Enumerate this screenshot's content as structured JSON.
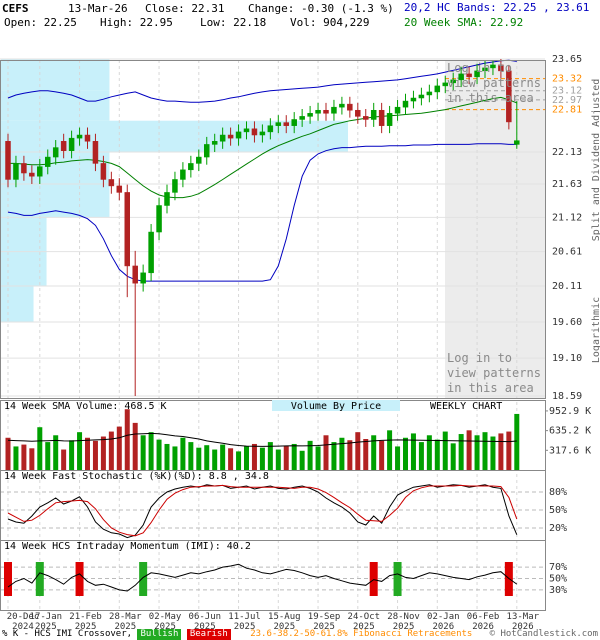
{
  "header": {
    "symbol": "CEFS",
    "date": "13-Mar-26",
    "close": "Close: 22.31",
    "change": "Change: -0.30 (-1.3 %)",
    "bands": "20,2 HC Bands: 22.25 , 23.61",
    "open": "Open: 22.25",
    "high": "High: 22.95",
    "low": "Low: 22.18",
    "volume": "Vol: 904,229",
    "sma": "20 Week SMA: 22.92"
  },
  "chart_data": [
    {
      "type": "candlestick",
      "log_scale": true,
      "grid": true,
      "side_labels": [
        "Split and Dividend Adjusted",
        "Logarithmic"
      ],
      "notice": "Log in to view patterns in this area",
      "categories": [
        "20-Dec 2024",
        null,
        null,
        null,
        "17-Jan 2025",
        null,
        null,
        null,
        null,
        "21-Feb 2025",
        null,
        null,
        null,
        null,
        "28-Mar 2025",
        null,
        null,
        null,
        null,
        "02-May 2025",
        null,
        null,
        null,
        null,
        "06-Jun 2025",
        null,
        null,
        null,
        null,
        "11-Jul 2025",
        null,
        null,
        null,
        null,
        "15-Aug 2025",
        null,
        null,
        null,
        null,
        "19-Sep 2025",
        null,
        null,
        null,
        null,
        "24-Oct 2025",
        null,
        null,
        null,
        null,
        "28-Nov 2025",
        null,
        null,
        null,
        null,
        "02-Jan 2026",
        null,
        null,
        null,
        null,
        "06-Feb 2026",
        null,
        null,
        null,
        null,
        "13-Mar 2026"
      ],
      "open": [
        22.3,
        21.7,
        21.95,
        21.8,
        21.75,
        21.9,
        22.05,
        22.3,
        22.15,
        22.35,
        22.4,
        22.3,
        21.95,
        21.7,
        21.6,
        21.5,
        20.4,
        20.15,
        20.3,
        20.9,
        21.3,
        21.5,
        21.7,
        21.85,
        21.95,
        22.05,
        22.25,
        22.3,
        22.4,
        22.35,
        22.45,
        22.5,
        22.4,
        22.45,
        22.55,
        22.6,
        22.55,
        22.65,
        22.7,
        22.75,
        22.8,
        22.75,
        22.85,
        22.9,
        22.8,
        22.7,
        22.65,
        22.8,
        22.55,
        22.75,
        22.85,
        22.95,
        23.0,
        23.05,
        23.1,
        23.2,
        23.25,
        23.3,
        23.4,
        23.35,
        23.45,
        23.5,
        23.55,
        23.45,
        22.25
      ],
      "high": [
        22.42,
        22.07,
        22.07,
        21.92,
        22.02,
        22.17,
        22.32,
        22.42,
        22.47,
        22.52,
        22.52,
        22.42,
        22.07,
        21.82,
        21.72,
        21.62,
        20.62,
        20.42,
        21.02,
        21.42,
        21.62,
        21.82,
        21.97,
        22.07,
        22.17,
        22.37,
        22.42,
        22.52,
        22.52,
        22.57,
        22.62,
        22.62,
        22.57,
        22.67,
        22.72,
        22.72,
        22.77,
        22.82,
        22.87,
        22.92,
        22.92,
        22.97,
        23.02,
        23.02,
        22.92,
        22.82,
        22.92,
        22.92,
        22.87,
        22.97,
        23.07,
        23.12,
        23.17,
        23.22,
        23.32,
        23.37,
        23.42,
        23.52,
        23.52,
        23.57,
        23.62,
        23.63,
        23.65,
        23.55,
        22.95
      ],
      "low": [
        21.58,
        21.58,
        21.68,
        21.63,
        21.63,
        21.78,
        21.93,
        22.03,
        22.03,
        22.23,
        22.18,
        21.83,
        21.58,
        21.48,
        21.38,
        19.95,
        18.59,
        20.03,
        20.18,
        20.78,
        21.18,
        21.38,
        21.58,
        21.73,
        21.83,
        21.93,
        22.13,
        22.18,
        22.23,
        22.23,
        22.33,
        22.28,
        22.28,
        22.33,
        22.43,
        22.43,
        22.43,
        22.53,
        22.58,
        22.63,
        22.63,
        22.63,
        22.73,
        22.68,
        22.58,
        22.53,
        22.53,
        22.43,
        22.43,
        22.63,
        22.73,
        22.83,
        22.88,
        22.93,
        22.98,
        23.08,
        23.13,
        23.18,
        23.23,
        23.23,
        23.33,
        23.38,
        23.33,
        22.49,
        22.18
      ],
      "close": [
        21.7,
        21.95,
        21.8,
        21.75,
        21.9,
        22.05,
        22.2,
        22.15,
        22.35,
        22.4,
        22.3,
        21.95,
        21.7,
        21.6,
        21.5,
        20.4,
        20.15,
        20.3,
        20.9,
        21.3,
        21.5,
        21.7,
        21.85,
        21.95,
        22.05,
        22.25,
        22.3,
        22.4,
        22.35,
        22.45,
        22.5,
        22.4,
        22.45,
        22.55,
        22.6,
        22.55,
        22.65,
        22.7,
        22.75,
        22.8,
        22.75,
        22.85,
        22.9,
        22.8,
        22.7,
        22.65,
        22.8,
        22.55,
        22.75,
        22.85,
        22.95,
        23.0,
        23.05,
        23.1,
        23.2,
        23.25,
        23.3,
        23.4,
        23.35,
        23.45,
        23.5,
        23.55,
        23.45,
        22.61,
        22.31
      ],
      "up_color": "#00a000",
      "down_color": "#b22222",
      "overlays": [
        {
          "color": "#008000",
          "values": [
            21.95,
            21.95,
            21.94,
            21.93,
            21.93,
            21.94,
            21.96,
            21.97,
            21.99,
            22.0,
            22.01,
            22.0,
            21.98,
            21.95,
            21.9,
            21.8,
            21.7,
            21.6,
            21.52,
            21.46,
            21.43,
            21.42,
            21.42,
            21.44,
            21.48,
            21.55,
            21.62,
            21.7,
            21.78,
            21.86,
            21.94,
            22.02,
            22.1,
            22.17,
            22.23,
            22.28,
            22.33,
            22.38,
            22.42,
            22.47,
            22.52,
            22.57,
            22.6,
            22.63,
            22.65,
            22.67,
            22.69,
            22.7,
            22.71,
            22.72,
            22.73,
            22.74,
            22.75,
            22.77,
            22.79,
            22.81,
            22.84,
            22.87,
            22.9,
            22.93,
            22.96,
            22.99,
            23.01,
            22.97,
            22.92
          ]
        },
        {
          "color": "#0000c0",
          "values": [
            23.0,
            23.05,
            23.08,
            23.1,
            23.12,
            23.12,
            23.1,
            23.08,
            23.05,
            23.0,
            22.95,
            22.95,
            22.98,
            23.02,
            23.05,
            23.08,
            23.1,
            23.05,
            23.0,
            22.97,
            22.95,
            22.95,
            22.94,
            22.93,
            22.93,
            22.94,
            22.95,
            22.97,
            23.0,
            23.02,
            23.05,
            23.08,
            23.1,
            23.12,
            23.13,
            23.14,
            23.15,
            23.16,
            23.17,
            23.18,
            23.2,
            23.22,
            23.23,
            23.24,
            23.25,
            23.26,
            23.27,
            23.28,
            23.29,
            23.3,
            23.32,
            23.34,
            23.36,
            23.38,
            23.4,
            23.43,
            23.46,
            23.49,
            23.52,
            23.55,
            23.58,
            23.6,
            23.62,
            23.63,
            23.61
          ]
        },
        {
          "color": "#0000c0",
          "values": [
            21.2,
            21.18,
            21.15,
            21.15,
            21.18,
            21.2,
            21.22,
            21.2,
            21.18,
            21.15,
            21.1,
            21.0,
            20.8,
            20.55,
            20.35,
            20.25,
            20.2,
            20.18,
            20.18,
            20.18,
            20.18,
            20.18,
            20.18,
            20.18,
            20.18,
            20.18,
            20.18,
            20.18,
            20.18,
            20.18,
            20.18,
            20.18,
            20.18,
            20.2,
            20.4,
            20.8,
            21.3,
            21.75,
            22.0,
            22.1,
            22.15,
            22.18,
            22.2,
            22.2,
            22.21,
            22.22,
            22.22,
            22.22,
            22.23,
            22.23,
            22.23,
            22.24,
            22.24,
            22.24,
            22.25,
            22.25,
            22.25,
            22.25,
            22.25,
            22.26,
            22.26,
            22.26,
            22.26,
            22.25,
            22.25
          ]
        }
      ],
      "vbp_bins": [
        19.6,
        20.11,
        20.61,
        21.12,
        21.63,
        22.13,
        22.63,
        23.13,
        23.65
      ],
      "vbp_values": [
        30,
        42,
        42,
        100,
        100,
        320,
        100,
        100
      ],
      "vbp_color": "#c8f0fa",
      "fib_levels": [
        {
          "value": 23.32,
          "color": "#ff8c00"
        },
        {
          "value": 23.12,
          "color": "#a0a0a0"
        },
        {
          "value": 22.97,
          "color": "#a0a0a0"
        },
        {
          "value": 22.81,
          "color": "#ff8c00"
        }
      ],
      "ylim": [
        18.59,
        23.65
      ],
      "yticks": [
        23.65,
        22.13,
        21.63,
        21.12,
        20.61,
        20.11,
        {
          "value": 19.6,
          "label": "19.60"
        },
        {
          "value": 19.1,
          "label": "19.10"
        },
        18.59
      ]
    },
    {
      "type": "bar",
      "title": "14 Week SMA Volume: 468.5 K",
      "subtitle": "Volume By Price",
      "annotation": "WEEKLY CHART",
      "values": [
        520000,
        380000,
        410000,
        350000,
        690000,
        450000,
        560000,
        330000,
        480000,
        610000,
        520000,
        470000,
        540000,
        620000,
        700000,
        980000,
        760000,
        560000,
        610000,
        490000,
        420000,
        380000,
        520000,
        450000,
        360000,
        400000,
        330000,
        410000,
        350000,
        300000,
        380000,
        420000,
        360000,
        450000,
        330000,
        390000,
        420000,
        310000,
        470000,
        380000,
        560000,
        450000,
        520000,
        480000,
        610000,
        500000,
        560000,
        470000,
        640000,
        380000,
        520000,
        590000,
        450000,
        560000,
        490000,
        620000,
        430000,
        580000,
        640000,
        560000,
        610000,
        540000,
        590000,
        620000,
        904229
      ],
      "sma": [
        480000,
        475000,
        470000,
        465000,
        470000,
        472000,
        478000,
        470000,
        468000,
        475000,
        480000,
        485000,
        490000,
        500000,
        520000,
        560000,
        580000,
        585000,
        590000,
        585000,
        570000,
        550000,
        540000,
        520000,
        500000,
        470000,
        450000,
        430000,
        410000,
        395000,
        385000,
        382000,
        380000,
        382000,
        385000,
        388000,
        390000,
        388000,
        392000,
        395000,
        405000,
        415000,
        425000,
        435000,
        450000,
        460000,
        470000,
        478000,
        482000,
        485000,
        484000,
        482000,
        480000,
        478000,
        476000,
        474000,
        472000,
        470000,
        468000,
        466000,
        464000,
        462000,
        460000,
        458000,
        468500
      ],
      "sma_color": "#000000",
      "ylim": [
        0,
        1000000
      ],
      "yticks": [
        {
          "value": 952900,
          "label": "952.9 K"
        },
        {
          "value": 635200,
          "label": "635.2 K"
        },
        {
          "value": 317600,
          "label": "317.6 K"
        }
      ]
    },
    {
      "type": "line",
      "title": "14 Week Fast Stochastic (%K)(%D): 8.8 , 34.8",
      "series": [
        {
          "color": "#000000",
          "values": [
            35,
            30,
            28,
            40,
            55,
            62,
            70,
            60,
            65,
            72,
            55,
            30,
            18,
            12,
            10,
            4,
            8,
            25,
            55,
            70,
            80,
            85,
            88,
            90,
            88,
            92,
            90,
            91,
            86,
            88,
            90,
            85,
            88,
            90,
            86,
            85,
            88,
            90,
            86,
            80,
            70,
            62,
            55,
            45,
            30,
            25,
            40,
            28,
            55,
            75,
            82,
            88,
            90,
            92,
            88,
            90,
            92,
            91,
            88,
            90,
            92,
            88,
            86,
            40,
            8.8
          ]
        },
        {
          "color": "#cc0000",
          "values": [
            45,
            38,
            31,
            33,
            41,
            52,
            62,
            64,
            65,
            66,
            64,
            52,
            34,
            20,
            13,
            9,
            7,
            12,
            29,
            50,
            68,
            78,
            84,
            88,
            89,
            90,
            90,
            91,
            89,
            88,
            88,
            88,
            88,
            88,
            88,
            87,
            86,
            88,
            88,
            85,
            79,
            71,
            62,
            54,
            43,
            33,
            32,
            31,
            41,
            53,
            71,
            82,
            87,
            90,
            90,
            90,
            90,
            91,
            90,
            90,
            90,
            90,
            89,
            71,
            34.8
          ]
        }
      ],
      "ylim": [
        0,
        100
      ],
      "yticks": [
        {
          "value": 80,
          "label": "80%"
        },
        {
          "value": 50,
          "label": "50%"
        },
        {
          "value": 20,
          "label": "20%"
        }
      ]
    },
    {
      "type": "line",
      "title": "14 Week HCS Intraday Momentum (IMI): 40.2",
      "values": [
        35,
        45,
        50,
        42,
        60,
        55,
        48,
        40,
        52,
        58,
        45,
        38,
        40,
        35,
        30,
        28,
        38,
        52,
        60,
        58,
        55,
        52,
        56,
        60,
        58,
        62,
        65,
        70,
        72,
        75,
        68,
        65,
        60,
        58,
        62,
        66,
        64,
        60,
        55,
        52,
        55,
        50,
        46,
        42,
        40,
        38,
        48,
        45,
        55,
        58,
        52,
        50,
        55,
        60,
        58,
        55,
        52,
        50,
        48,
        53,
        56,
        60,
        62,
        50,
        40.2
      ],
      "color": "#000000",
      "bullish_x": [
        4,
        17,
        49
      ],
      "bearish_x": [
        0,
        9,
        46,
        63
      ],
      "bullish_color": "#22aa22",
      "bearish_color": "#dd0000",
      "ylim": [
        0,
        100
      ],
      "yticks": [
        {
          "value": 70,
          "label": "70%"
        },
        {
          "value": 50,
          "label": "50%"
        },
        {
          "value": 30,
          "label": "30%"
        }
      ]
    }
  ],
  "footer": {
    "crossover": "% K - HCS IMI Crossover,",
    "bullish": "Bullish",
    "bearish": "Bearish",
    "fib": "23.6-38.2-50-61.8% Fibonacci Retracements",
    "copyright": "© HotCandlestick.com"
  }
}
